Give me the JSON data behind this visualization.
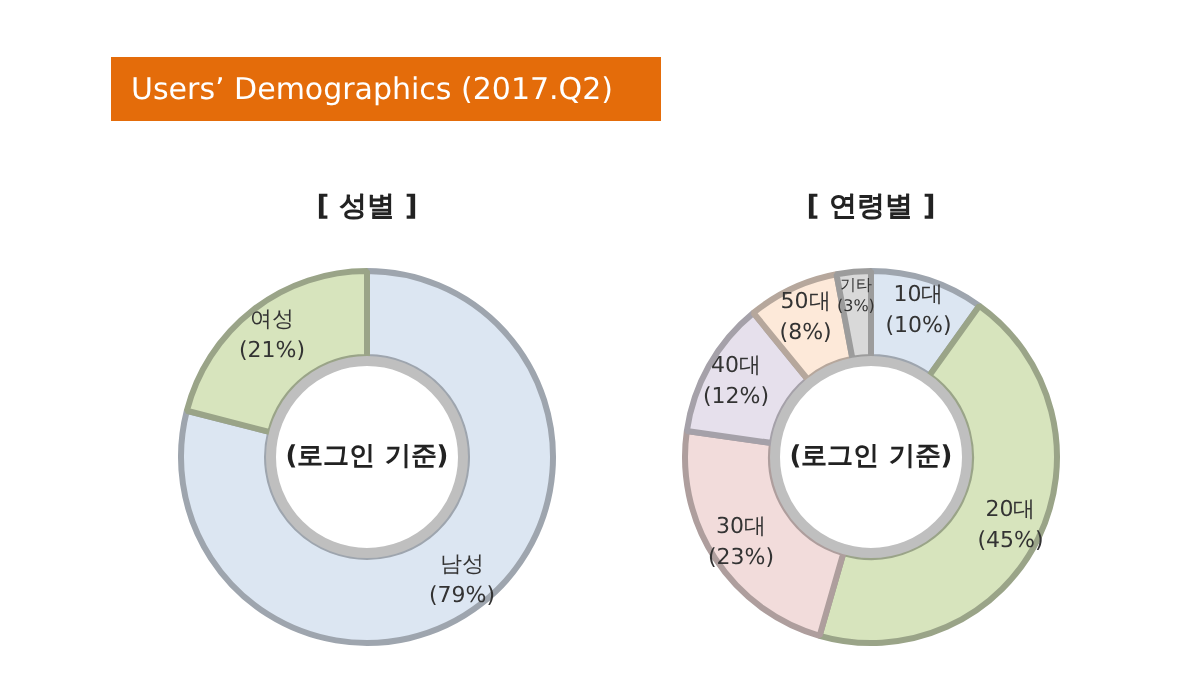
{
  "chart_data": [
    {
      "type": "other",
      "title": "Users’ Demographics (2017.Q2)"
    },
    {
      "type": "donut",
      "title": "[ 성별 ]",
      "categories": [
        "남성",
        "여성"
      ],
      "values": [
        79,
        21
      ],
      "colors": [
        "#dce6f2",
        "#d7e4bd"
      ],
      "value_labels": [
        "(79%)",
        "(21%)"
      ],
      "annotations": [
        "(로그인 기준)"
      ]
    },
    {
      "type": "donut",
      "title": "[ 연령별 ]",
      "categories": [
        "10대",
        "20대",
        "30대",
        "40대",
        "50대",
        "기타"
      ],
      "values": [
        10,
        45,
        23,
        12,
        8,
        3
      ],
      "colors": [
        "#dce6f2",
        "#d7e4bd",
        "#f2dcdb",
        "#e6e0ec",
        "#fde9d9",
        "#d9d9d9"
      ],
      "value_labels": [
        "(10%)",
        "(45%)",
        "(23%)",
        "(12%)",
        "(8%)",
        "(3%)"
      ],
      "annotations": [
        "(로그인 기준)"
      ]
    }
  ]
}
